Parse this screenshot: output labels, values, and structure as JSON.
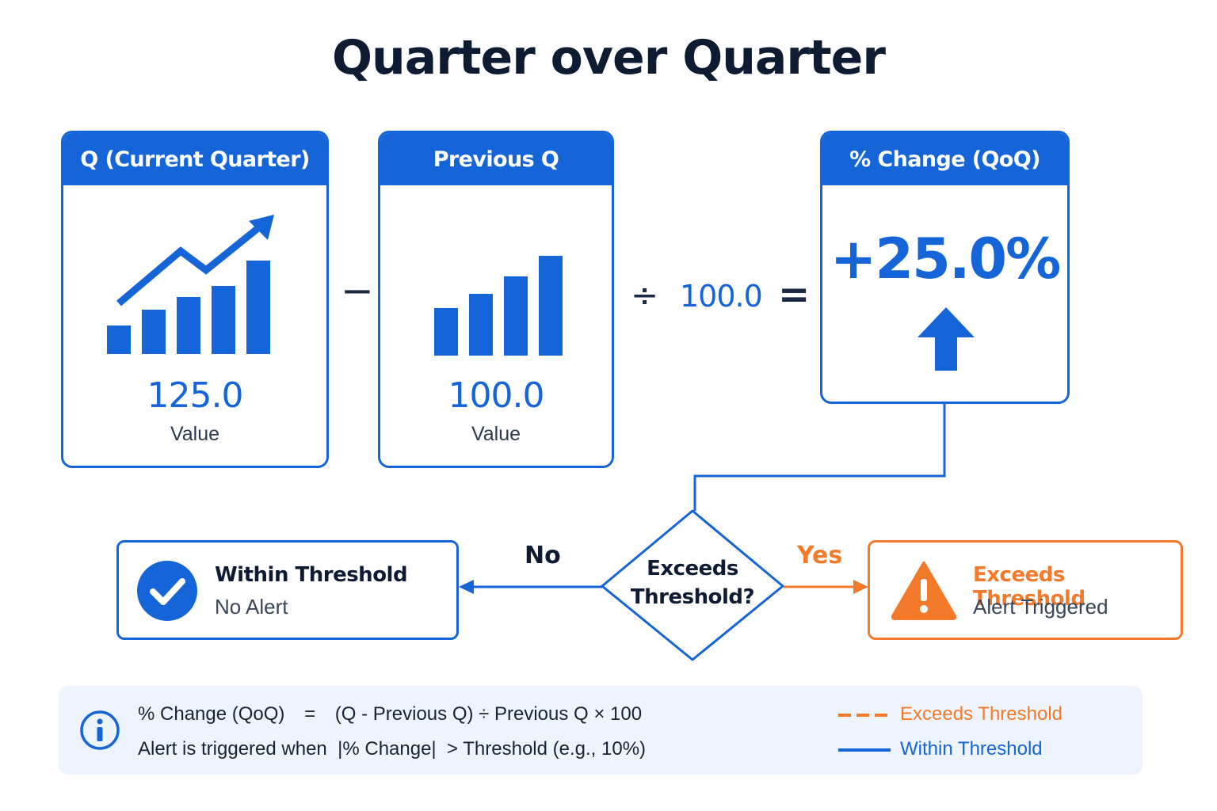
{
  "title": "Quarter over Quarter",
  "colors": {
    "primary": "#1565d8",
    "alert": "#f47a2b",
    "text": "#0f1b33",
    "panel": "#eef4fd"
  },
  "current_card": {
    "header": "Q (Current Quarter)",
    "value": "125.0",
    "caption": "Value",
    "icon": "growth-chart-icon"
  },
  "previous_card": {
    "header": "Previous Q",
    "value": "100.0",
    "caption": "Value",
    "icon": "bar-chart-icon"
  },
  "operators": {
    "minus": "−",
    "divide": "÷",
    "divisor": "100.0",
    "equals": "="
  },
  "change_card": {
    "header": "% Change (QoQ)",
    "value": "+25.0%",
    "icon": "up-arrow-icon"
  },
  "decision": {
    "line1": "Exceeds",
    "line2": "Threshold?",
    "no_label": "No",
    "yes_label": "Yes"
  },
  "within_box": {
    "title": "Within Threshold",
    "subtitle": "No Alert",
    "icon": "check-circle-icon"
  },
  "exceeds_box": {
    "title": "Exceeds Threshold",
    "subtitle": "Alert Triggered",
    "icon": "warning-triangle-icon"
  },
  "info": {
    "icon": "info-icon",
    "formula_left": "% Change (QoQ)",
    "formula_eq": "=",
    "formula_right": "(Q - Previous Q) ÷ Previous Q × 100",
    "rule": "Alert is triggered when  |% Change|  > Threshold (e.g., 10%)"
  },
  "legend": {
    "exceeds": "Exceeds Threshold",
    "within": "Within Threshold"
  }
}
